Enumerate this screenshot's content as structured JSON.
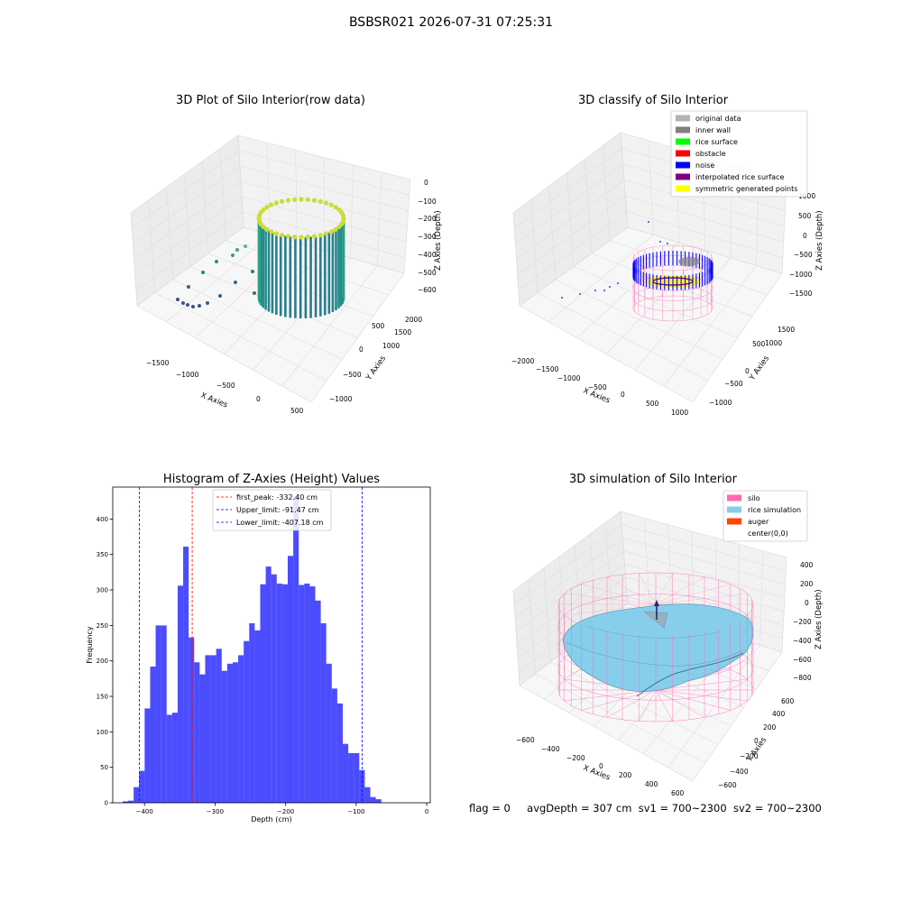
{
  "suptitle": "BSBSR021 2026-07-31 07:25:31",
  "footer": {
    "flag": "flag = 0",
    "avg_depth": "avgDepth = 307 cm",
    "sv1": "sv1 = 700~2300",
    "sv2": "sv2 = 700~2300"
  },
  "panels": {
    "raw": {
      "title": "3D Plot of Silo Interior(row data)",
      "xlabel": "X Axies",
      "ylabel": "Y Axies",
      "zlabel": "Z Axies (Depth)",
      "xticks": [
        "−1500",
        "−1000",
        "−500",
        "0",
        "500"
      ],
      "yticks": [
        "−1000",
        "−500",
        "0",
        "500",
        "1000",
        "1500",
        "2000"
      ],
      "zticks": [
        "0",
        "−100",
        "−200",
        "−300",
        "−400",
        "−500",
        "−600"
      ]
    },
    "classify": {
      "title": "3D classify of Silo Interior",
      "xlabel": "X Axies",
      "ylabel": "Y Axies",
      "zlabel": "Z Axies (Depth)",
      "xticks": [
        "−2000",
        "−1500",
        "−1000",
        "−500",
        "0",
        "500",
        "1000"
      ],
      "yticks": [
        "−1000",
        "−500",
        "0",
        "500",
        "1000",
        "1500"
      ],
      "zticks": [
        "1000",
        "500",
        "0",
        "−500",
        "−1000",
        "−1500"
      ],
      "legend": [
        {
          "label": "original data",
          "color": "#b3b3b3"
        },
        {
          "label": "inner wall",
          "color": "#808080"
        },
        {
          "label": "rice surface",
          "color": "#00ff00"
        },
        {
          "label": "obstacle",
          "color": "#ff0000"
        },
        {
          "label": "noise",
          "color": "#0000ff"
        },
        {
          "label": "interpolated rice surface",
          "color": "#800080"
        },
        {
          "label": "symmetric generated points",
          "color": "#ffff00"
        }
      ]
    },
    "simulation": {
      "title": "3D simulation of Silo Interior",
      "xlabel": "X Axies",
      "ylabel": "Y Axies",
      "zlabel": "Z Axies (Depth)",
      "xticks": [
        "−600",
        "−400",
        "−200",
        "0",
        "200",
        "400",
        "600"
      ],
      "yticks": [
        "−600",
        "−400",
        "−200",
        "0",
        "200",
        "400",
        "600"
      ],
      "zticks": [
        "400",
        "200",
        "0",
        "−200",
        "−400",
        "−600",
        "−800"
      ],
      "legend": [
        {
          "label": "silo",
          "color": "#ff69b4"
        },
        {
          "label": "rice simulation",
          "color": "#87ceeb"
        },
        {
          "label": "auger",
          "color": "#ff4500"
        },
        {
          "label": "center(0,0)",
          "color": ""
        }
      ]
    }
  },
  "chart_data": {
    "type": "bar",
    "title": "Histogram of Z-Axies (Height) Values",
    "xlabel": "Depth (cm)",
    "ylabel": "Frequency",
    "xlim": [
      -445,
      5
    ],
    "ylim": [
      0,
      445
    ],
    "xticks": [
      -400,
      -300,
      -200,
      -100,
      0
    ],
    "yticks": [
      0,
      50,
      100,
      150,
      200,
      250,
      300,
      350,
      400
    ],
    "bin_start": -431,
    "bin_width": 7.8,
    "values": [
      2,
      3,
      22,
      45,
      133,
      192,
      250,
      250,
      124,
      127,
      306,
      361,
      233,
      198,
      181,
      208,
      208,
      217,
      186,
      196,
      198,
      208,
      228,
      253,
      243,
      308,
      333,
      322,
      309,
      308,
      348,
      432,
      307,
      309,
      305,
      285,
      253,
      196,
      161,
      140,
      83,
      70,
      70,
      46,
      22,
      8,
      5
    ],
    "bar_color": "#0000ff",
    "vlines": [
      {
        "x": -332.4,
        "label": "first_peak: -332.40 cm",
        "color": "#ff0000"
      },
      {
        "x": -91.47,
        "label": "Upper_limit: -91.47 cm",
        "color": "#0000ff"
      },
      {
        "x": -407.18,
        "label": "Lower_limit: -407.18 cm",
        "color": "#0000ff"
      }
    ],
    "legend_placement": "top-center"
  }
}
